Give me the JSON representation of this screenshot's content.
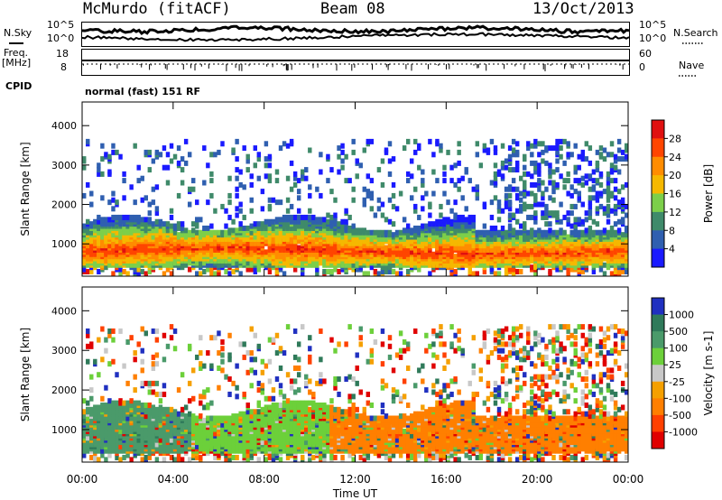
{
  "header": {
    "station": "McMurdo (fitACF)",
    "beam": "Beam 08",
    "date": "13/Oct/2013"
  },
  "strip": {
    "nsky_label": "N.Sky",
    "nsky_ticks": [
      "10^5",
      "10^0"
    ],
    "nsearch_label": "N.Search",
    "nsearch_ticks": [
      "10^5",
      "10^0"
    ],
    "freq_label": "Freq.",
    "freq_unit": "[MHz]",
    "freq_ticks": [
      "18",
      "8"
    ],
    "nave_label": "Nave",
    "nave_ticks": [
      "60",
      "0"
    ],
    "cpid_label": "CPID",
    "cpid_text": "normal (fast) 151 RF"
  },
  "chart_data": [
    {
      "type": "heatmap",
      "name": "power",
      "ylabel": "Slant Range [km]",
      "ylim": [
        180,
        4600
      ],
      "yticks": [
        "1000",
        "2000",
        "3000",
        "4000"
      ],
      "colorbar_label": "Power [dB]",
      "colorbar_ticks": [
        "4",
        "8",
        "12",
        "16",
        "20",
        "24",
        "28"
      ],
      "colors": [
        "#1a1aff",
        "#2f5fb0",
        "#3f8a6a",
        "#7ccf4a",
        "#f5b800",
        "#ff8c00",
        "#ff4500",
        "#e01010"
      ]
    },
    {
      "type": "heatmap",
      "name": "velocity",
      "ylabel": "Slant Range [km]",
      "ylim": [
        180,
        4600
      ],
      "yticks": [
        "1000",
        "2000",
        "3000",
        "4000"
      ],
      "colorbar_label": "Velocity [m s-1]",
      "colorbar_ticks": [
        "1000",
        "500",
        "100",
        "25",
        "-25",
        "-100",
        "-500",
        "-1000"
      ],
      "colors": [
        "#2030c0",
        "#2f7a5a",
        "#4a9a6a",
        "#6cd03a",
        "#c8c8c8",
        "#f5a000",
        "#ff7f00",
        "#ff4000",
        "#e00000"
      ]
    }
  ],
  "xaxis": {
    "label": "Time UT",
    "ticks": [
      "00:00",
      "04:00",
      "08:00",
      "12:00",
      "16:00",
      "20:00",
      "00:00"
    ]
  }
}
